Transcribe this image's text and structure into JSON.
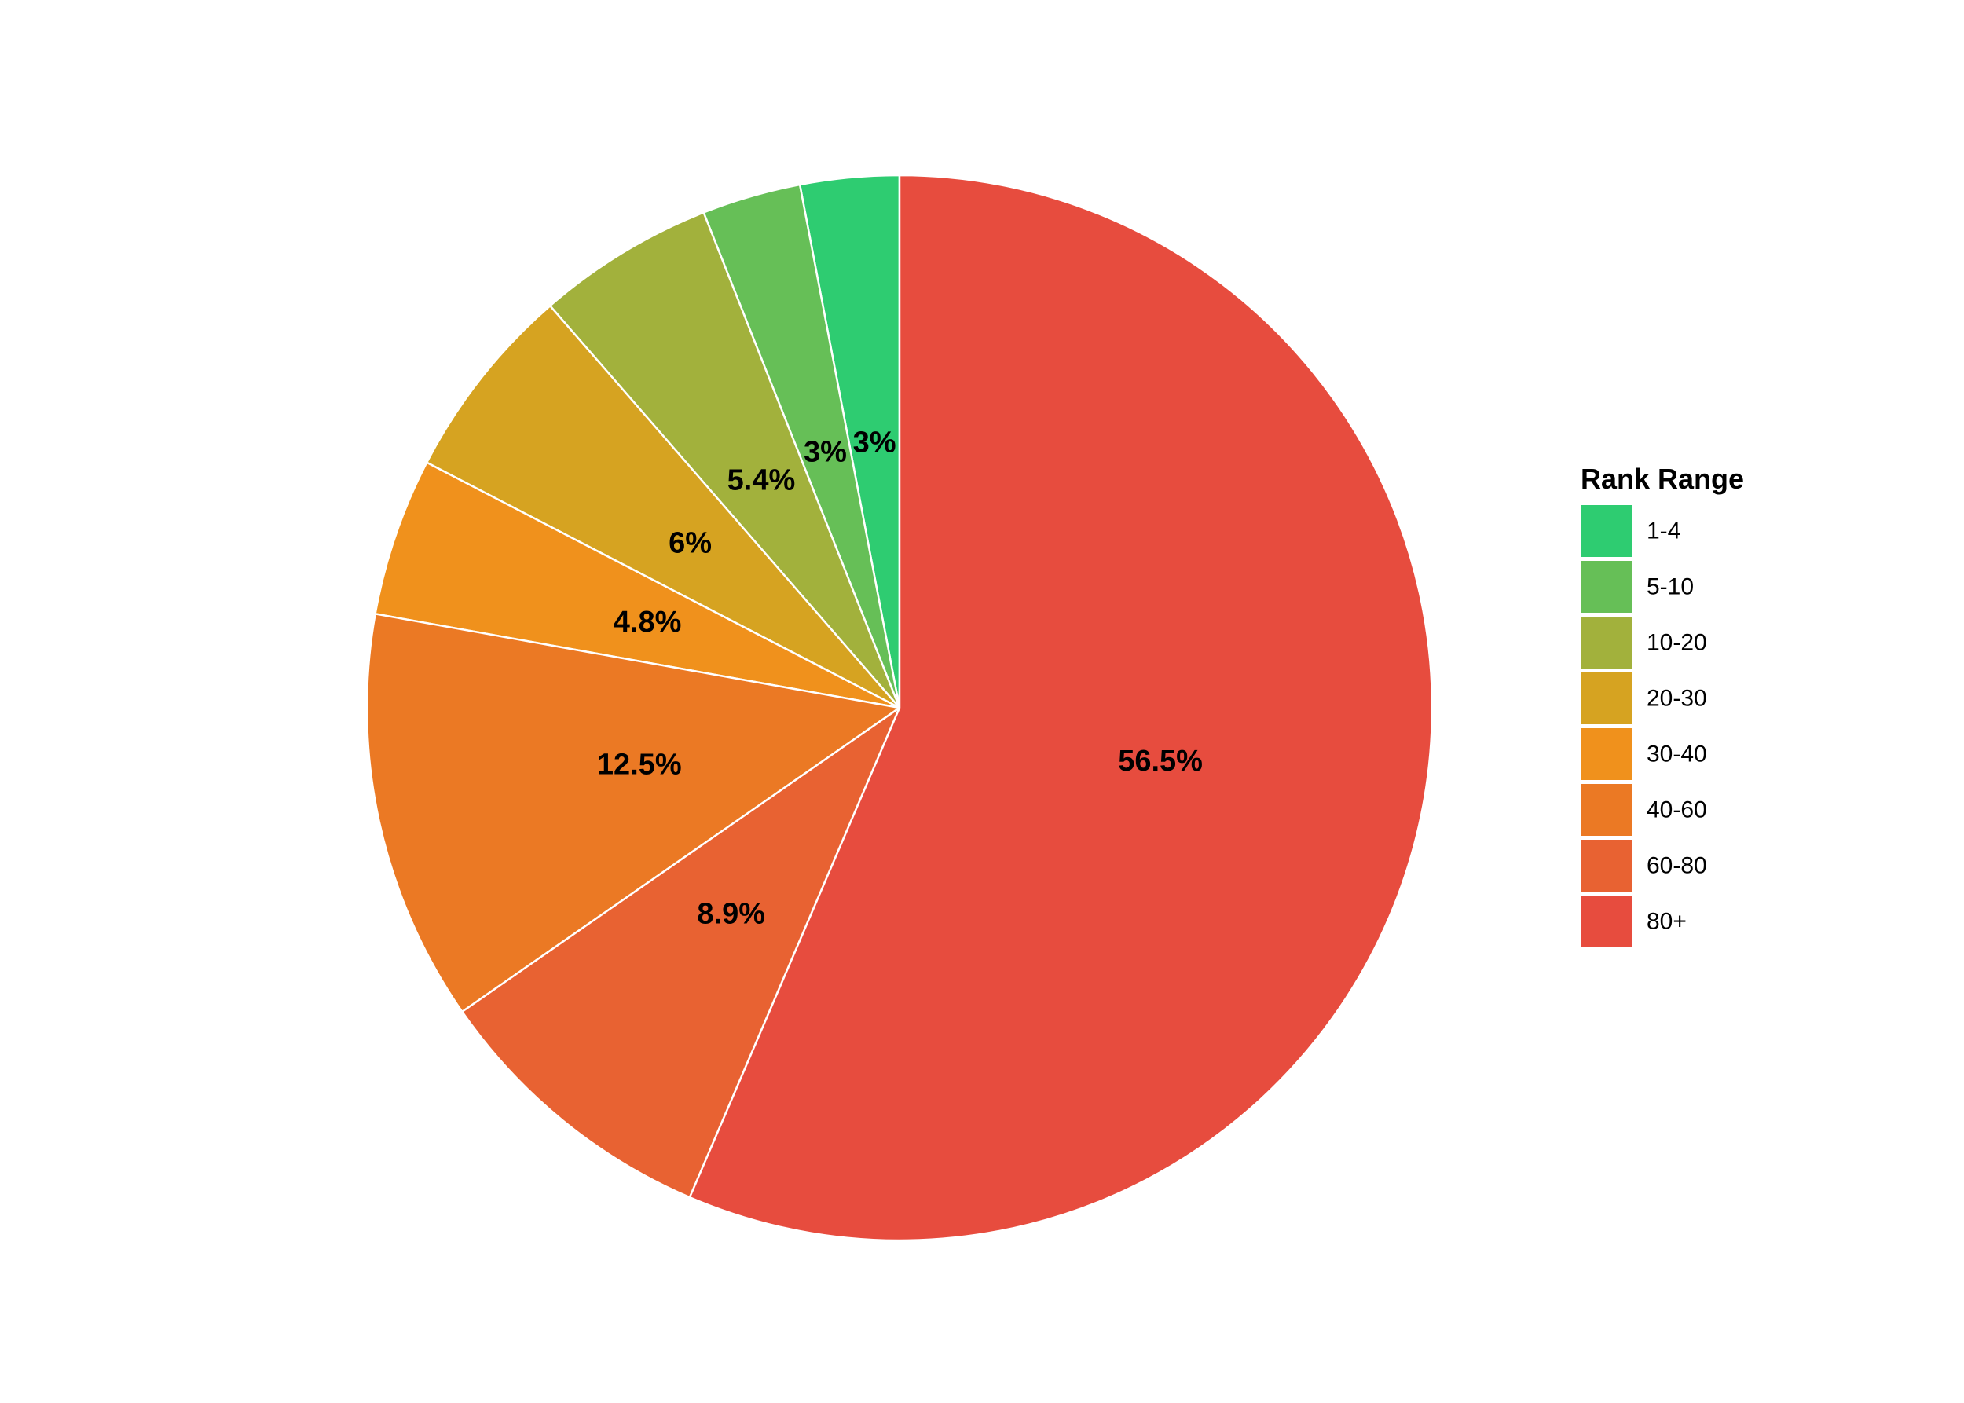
{
  "chart_data": {
    "type": "pie",
    "legend_title": "Rank Range",
    "legend_position": "right",
    "start": "top",
    "direction": "counterclockwise",
    "categories": [
      "1-4",
      "5-10",
      "10-20",
      "20-30",
      "30-40",
      "40-60",
      "60-80",
      "80+"
    ],
    "values": [
      3,
      3,
      5.4,
      6,
      4.8,
      12.5,
      8.9,
      56.5
    ],
    "labels": [
      "3%",
      "3%",
      "5.4%",
      "6%",
      "4.8%",
      "12.5%",
      "8.9%",
      "56.5%"
    ],
    "colors": [
      "#2ecc71",
      "#66bf57",
      "#a2b13c",
      "#d6a321",
      "#f0911c",
      "#eb7924",
      "#e86232",
      "#e74c3e"
    ]
  }
}
